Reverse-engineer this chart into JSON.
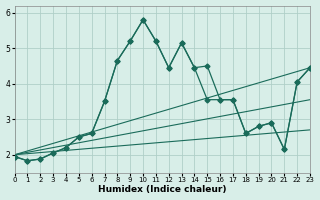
{
  "xlabel": "Humidex (Indice chaleur)",
  "ylabel": "",
  "bg_color": "#d8eee8",
  "grid_color": "#b0cfc8",
  "line_color": "#1a6b5a",
  "xlim": [
    0,
    23
  ],
  "ylim": [
    1.5,
    6.2
  ],
  "yticks": [
    2,
    3,
    4,
    5,
    6
  ],
  "xticks": [
    0,
    1,
    2,
    3,
    4,
    5,
    6,
    7,
    8,
    9,
    10,
    11,
    12,
    13,
    14,
    15,
    16,
    17,
    18,
    19,
    20,
    21,
    22,
    23
  ],
  "series": [
    {
      "x": [
        0,
        1,
        2,
        3,
        4,
        5,
        6,
        7,
        8,
        9,
        10,
        11,
        12,
        13,
        14,
        15,
        16,
        17,
        18,
        19,
        20,
        21,
        22,
        23
      ],
      "y": [
        1.95,
        1.83,
        1.88,
        2.05,
        2.2,
        2.5,
        2.6,
        3.5,
        4.65,
        5.2,
        5.8,
        5.2,
        4.45,
        5.15,
        4.45,
        4.5,
        3.55,
        3.55,
        2.6,
        2.8,
        2.9,
        2.15,
        4.05,
        4.45
      ]
    },
    {
      "x": [
        0,
        1,
        2,
        3,
        4,
        5,
        6,
        7,
        8,
        9,
        10,
        11,
        12,
        13,
        14,
        15,
        16,
        17,
        18,
        19,
        20,
        21,
        22,
        23
      ],
      "y": [
        1.95,
        1.83,
        1.88,
        2.05,
        2.2,
        2.5,
        2.6,
        3.5,
        4.65,
        5.2,
        5.8,
        5.2,
        4.45,
        5.15,
        4.45,
        3.55,
        3.55,
        3.55,
        2.6,
        2.8,
        2.9,
        2.15,
        4.05,
        4.45
      ]
    },
    {
      "x": [
        0,
        23
      ],
      "y": [
        2.0,
        3.55
      ]
    },
    {
      "x": [
        0,
        23
      ],
      "y": [
        2.0,
        4.45
      ]
    },
    {
      "x": [
        0,
        23
      ],
      "y": [
        2.0,
        2.7
      ]
    }
  ]
}
